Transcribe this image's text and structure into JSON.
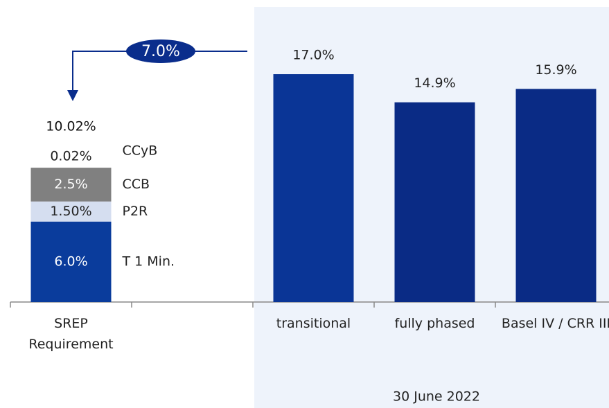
{
  "chart_data": {
    "type": "bar",
    "categories": [
      "SREP Requirement",
      null,
      "transitional",
      "fully phased",
      "Basel IV / CRR III"
    ],
    "values": [
      null,
      null,
      17.0,
      14.9,
      15.9
    ],
    "value_labels": [
      null,
      null,
      "17.0%",
      "14.9%",
      "15.9%"
    ],
    "colors": [
      null,
      null,
      "#0a3596",
      "#0a2b85",
      "#0a2b85"
    ],
    "stack": {
      "segments": [
        {
          "name": "T 1 Min.",
          "value": 6.0,
          "label": "6.0%",
          "color": "#0a3c9c"
        },
        {
          "name": "P2R",
          "value": 1.5,
          "label": "1.50%",
          "color": "#d5def0"
        },
        {
          "name": "CCB",
          "value": 2.5,
          "label": "2.5%",
          "color": "#808080"
        },
        {
          "name": "CCyB",
          "value": 0.02,
          "label": "0.02%",
          "color": "#808080"
        }
      ],
      "total": 10.02,
      "total_label": "10.02%"
    },
    "annotation": {
      "value": 7.0,
      "label": "7.0%"
    },
    "group_label": "30 June 2022"
  }
}
